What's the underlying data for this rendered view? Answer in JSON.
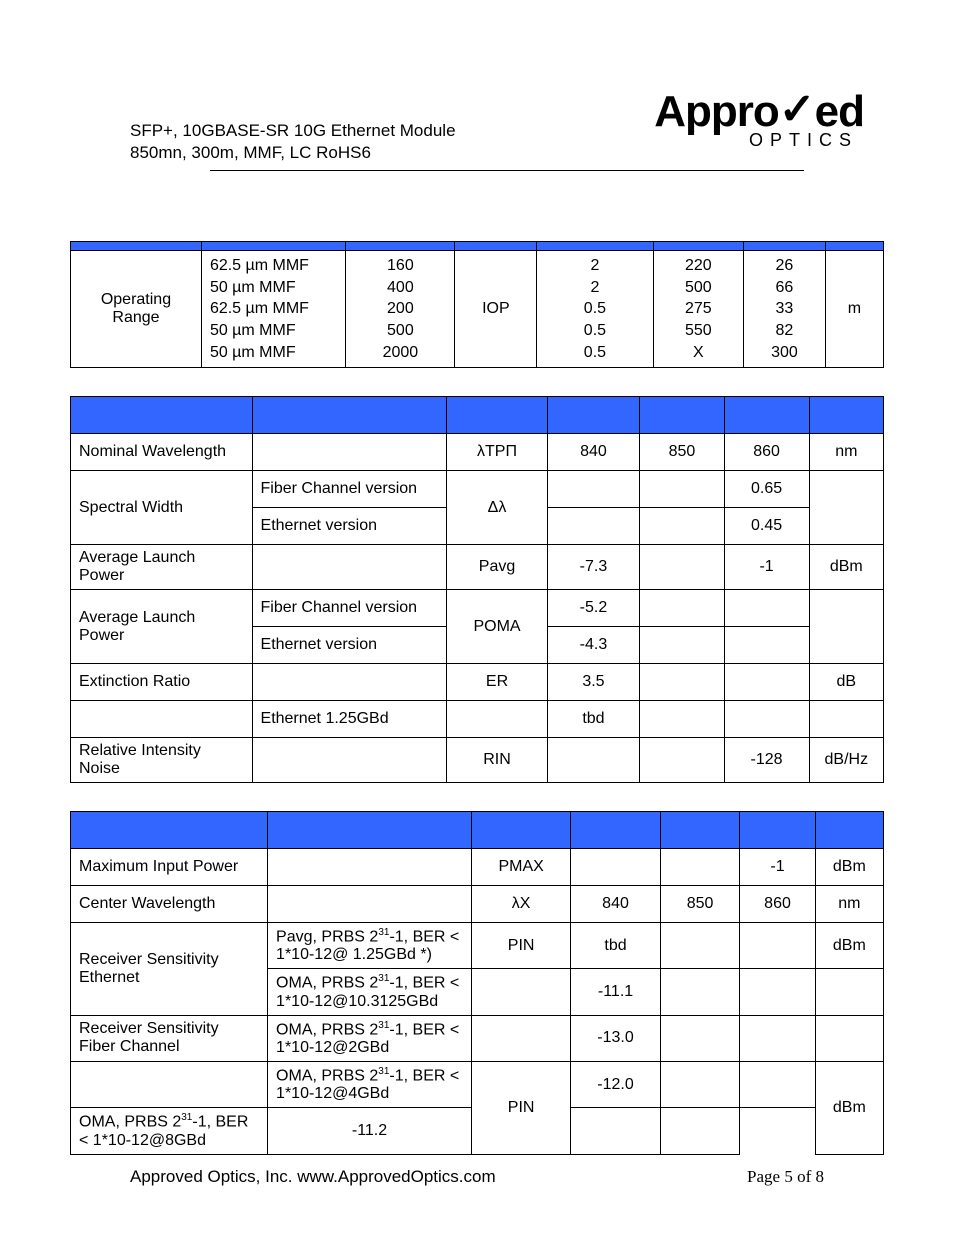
{
  "header": {
    "line1": "SFP+, 10GBASE-SR 10G Ethernet Module",
    "line2": "850mn, 300m, MMF, LC RoHS6",
    "logo_main": "Appro",
    "logo_mark": "✓",
    "logo_rest": "ed",
    "logo_sub": "OPTICS"
  },
  "colors": {
    "header_bg": "#3366ff",
    "border": "#000000",
    "text": "#000000",
    "page_bg": "#ffffff"
  },
  "table1": {
    "row": {
      "param": "Operating Range",
      "fiber": "62.5 µm MMF\n50 µm MMF\n62.5 µm MMF\n50 µm MMF\n50 µm MMF",
      "c3": "160\n400\n200\n500\n2000",
      "sym": "IOP",
      "c5": "2\n2\n0.5\n0.5\n0.5",
      "c6": "220\n500\n275\n550\nX",
      "c7": "26\n66\n33\n82\n300",
      "unit": "m"
    }
  },
  "table2": {
    "rows": [
      {
        "p": "Nominal Wavelength",
        "cond": "",
        "sym": "λΤΡΠ",
        "min": "840",
        "typ": "850",
        "max": "860",
        "u": "nm"
      },
      {
        "p": "Spectral Width",
        "cond": "Fiber Channel version",
        "sym": "Δλ",
        "min": "",
        "typ": "",
        "max": "0.65",
        "u": "",
        "rs_p": 2,
        "rs_sym": 2,
        "rs_u": 2
      },
      {
        "cond": "Ethernet version",
        "min": "",
        "typ": "",
        "max": "0.45"
      },
      {
        "p": "Average Launch Power",
        "cond": "",
        "sym": "Pavg",
        "min": "-7.3",
        "typ": "",
        "max": "-1",
        "u": "dBm"
      },
      {
        "p": "Average Launch Power",
        "cond": "Fiber Channel version",
        "sym": "POMA",
        "min": "-5.2",
        "typ": "",
        "max": "",
        "u": "",
        "rs_p": 2,
        "rs_sym": 2,
        "rs_u": 2
      },
      {
        "cond": "Ethernet version",
        "min": "-4.3",
        "typ": "",
        "max": ""
      },
      {
        "p": "Extinction Ratio",
        "cond": "",
        "sym": "ER",
        "min": "3.5",
        "typ": "",
        "max": "",
        "u": "dB"
      },
      {
        "p": "",
        "cond": "Ethernet 1.25GBd",
        "sym": "",
        "min": "tbd",
        "typ": "",
        "max": "",
        "u": ""
      },
      {
        "p": "Relative Intensity Noise",
        "cond": "",
        "sym": "RIN",
        "min": "",
        "typ": "",
        "max": "-128",
        "u": "dB/Hz"
      }
    ]
  },
  "table3": {
    "rows": [
      {
        "p": "Maximum Input Power",
        "cond": "",
        "sym": "PMAX",
        "min": "",
        "typ": "",
        "max": "-1",
        "u": "dBm"
      },
      {
        "p": "Center Wavelength",
        "cond": "",
        "sym": "λΧ",
        "min": "840",
        "typ": "850",
        "max": "860",
        "u": "nm"
      },
      {
        "p": "Receiver Sensitivity Ethernet",
        "cond": "Pavg, PRBS 2³¹-1, BER < 1*10-12@ 1.25GBd *)",
        "sym": "PIN",
        "min": "tbd",
        "typ": "",
        "max": "",
        "u": "dBm",
        "rs_p": 2
      },
      {
        "cond": "OMA, PRBS 2³¹-1, BER < 1*10-12@10.3125GBd",
        "sym": "",
        "min": "-11.1",
        "typ": "",
        "max": "",
        "u": ""
      },
      {
        "p": "Receiver Sensitivity Fiber Channel",
        "cond": "OMA, PRBS 2³¹-1, BER < 1*10-12@2GBd",
        "sym": "",
        "min": "-13.0",
        "typ": "",
        "max": "",
        "u": ""
      },
      {
        "p": "",
        "cond": "OMA, PRBS 2³¹-1, BER < 1*10-12@4GBd",
        "sym": "PIN",
        "min": "-12.0",
        "typ": "",
        "max": "",
        "u": "dBm",
        "rs_sym": 2,
        "rs_u": 2
      },
      {
        "cond": "OMA, PRBS 2³¹-1, BER < 1*10-12@8GBd",
        "min": "-11.2",
        "typ": "",
        "max": ""
      }
    ]
  },
  "footer": {
    "left": "Approved Optics, Inc.  www.ApprovedOptics.com",
    "right": "Page 5 of 8"
  }
}
